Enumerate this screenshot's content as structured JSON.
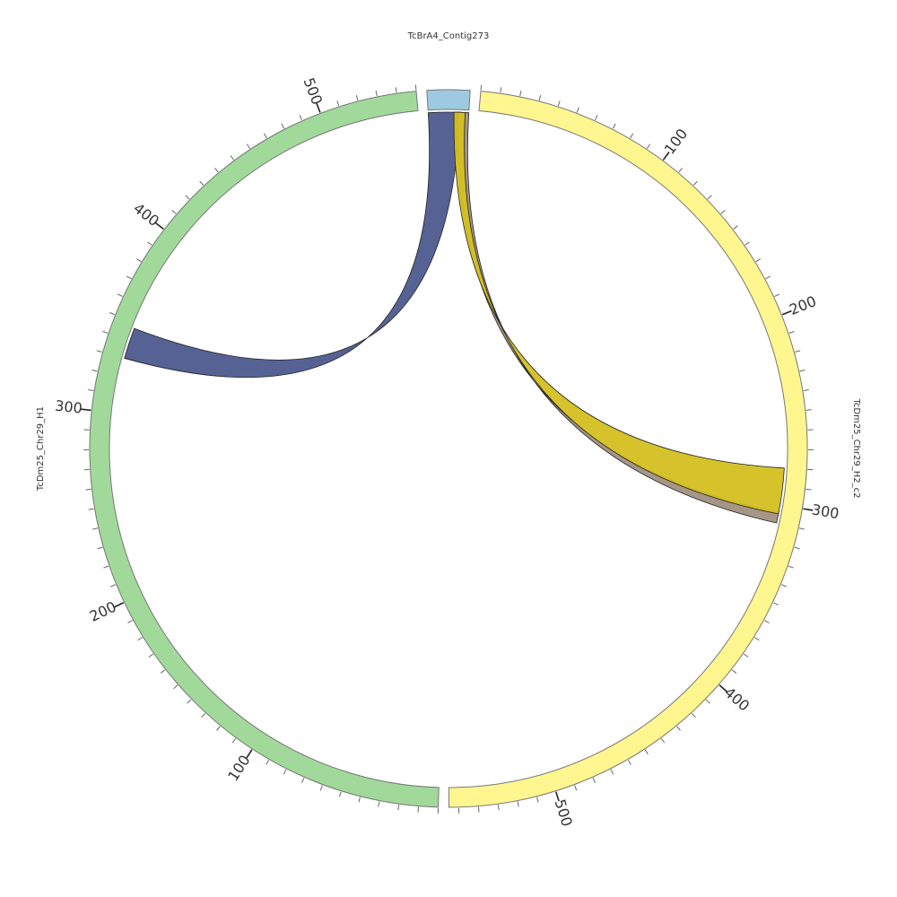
{
  "chart_data": {
    "type": "chord",
    "segments": [
      {
        "name": "TcBrA4_Contig273",
        "length": 22,
        "color": "#9ecae1"
      },
      {
        "name": "TcDm25_Chr29_H2_c2",
        "length": 555,
        "color": "#fff68f"
      },
      {
        "name": "TcDm25_Chr29_H1",
        "length": 550,
        "color": "#a1d99b"
      }
    ],
    "tick_labels": {
      "TcDm25_Chr29_H2_c2": [
        100,
        200,
        300,
        400,
        500
      ],
      "TcDm25_Chr29_H1": [
        100,
        200,
        300,
        400,
        500
      ]
    },
    "links": [
      {
        "from": "TcBrA4_Contig273",
        "from_range": [
          0,
          17
        ],
        "to": "TcDm25_Chr29_H1",
        "to_range": [
          330,
          347
        ],
        "color": "#4e5a8e"
      },
      {
        "from": "TcBrA4_Contig273",
        "from_range": [
          16,
          22
        ],
        "to": "TcDm25_Chr29_H2_c2",
        "to_range": [
          304,
          310
        ],
        "color": "#a09080"
      },
      {
        "from": "TcBrA4_Contig273",
        "from_range": [
          14,
          20
        ],
        "to": "TcDm25_Chr29_H2_c2",
        "to_range": [
          280,
          305
        ],
        "color": "#d4c020"
      }
    ]
  }
}
